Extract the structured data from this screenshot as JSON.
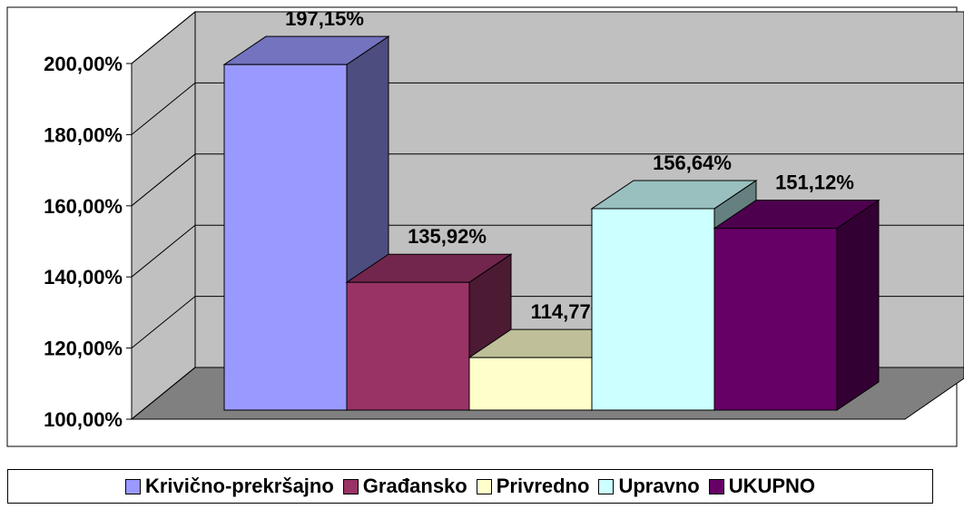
{
  "chart_data": {
    "type": "bar",
    "three_d": true,
    "ylim": [
      100,
      200
    ],
    "yticks": [
      {
        "value": 100,
        "label": "100,00%"
      },
      {
        "value": 120,
        "label": "120,00%"
      },
      {
        "value": 140,
        "label": "140,00%"
      },
      {
        "value": 160,
        "label": "160,00%"
      },
      {
        "value": 180,
        "label": "180,00%"
      },
      {
        "value": 200,
        "label": "200,00%"
      }
    ],
    "grid": true,
    "legend": "bottom",
    "series": [
      {
        "name": "Krivično-prekršajno",
        "color": "#9999ff",
        "values": [
          197.15
        ],
        "value_labels": [
          "197,15%"
        ]
      },
      {
        "name": "Građansko",
        "color": "#993366",
        "values": [
          135.92
        ],
        "value_labels": [
          "135,92%"
        ]
      },
      {
        "name": "Privredno",
        "color": "#ffffcc",
        "values": [
          114.77
        ],
        "value_labels": [
          "114,77%"
        ]
      },
      {
        "name": "Upravno",
        "color": "#ccffff",
        "values": [
          156.64
        ],
        "value_labels": [
          "156,64%"
        ]
      },
      {
        "name": "UKUPNO",
        "color": "#660066",
        "values": [
          151.12
        ],
        "value_labels": [
          "151,12%"
        ]
      }
    ]
  }
}
